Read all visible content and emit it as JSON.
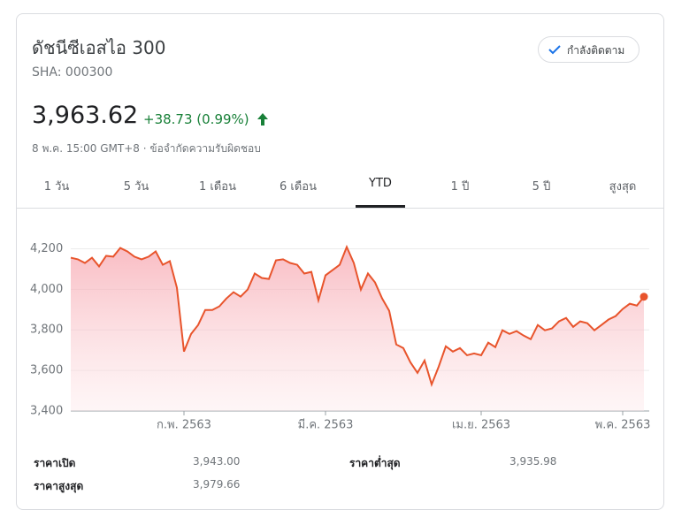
{
  "header": {
    "title": "ดัชนีซีเอสไอ 300",
    "symbol": "SHA: 000300",
    "follow_button": "กำลังติดตาม",
    "price": "3,963.62",
    "change": "+38.73 (0.99%)",
    "timestamp": "8 พ.ค. 15:00 GMT+8",
    "disclaimer": "ข้อจำกัดความรับผิดชอบ"
  },
  "tabs": [
    "1 วัน",
    "5 วัน",
    "1 เดือน",
    "6 เดือน",
    "YTD",
    "1 ปี",
    "5 ปี",
    "สูงสุด"
  ],
  "selected_tab": 4,
  "chart_data": {
    "type": "line",
    "categories": [
      null,
      null,
      null,
      null,
      null,
      null,
      null,
      null,
      null,
      null,
      null,
      null,
      null,
      null,
      null,
      null,
      "ก.พ. 2563",
      null,
      null,
      null,
      null,
      null,
      null,
      null,
      null,
      null,
      null,
      null,
      null,
      null,
      null,
      null,
      null,
      null,
      null,
      null,
      "มี.ค. 2563",
      null,
      null,
      null,
      null,
      null,
      null,
      null,
      null,
      null,
      null,
      null,
      null,
      null,
      null,
      null,
      null,
      null,
      null,
      null,
      null,
      null,
      "เม.ย. 2563",
      null,
      null,
      null,
      null,
      null,
      null,
      null,
      null,
      null,
      null,
      null,
      null,
      null,
      null,
      null,
      null,
      null,
      null,
      null,
      "พ.ค. 2563",
      null,
      null,
      null
    ],
    "series": [
      {
        "color": "#e8542c",
        "values": [
          4156,
          4148,
          4130,
          4156,
          4113,
          4165,
          4161,
          4204,
          4187,
          4161,
          4148,
          4161,
          4187,
          4121,
          4139,
          4008,
          3693,
          3780,
          3824,
          3898,
          3898,
          3916,
          3955,
          3986,
          3964,
          3999,
          4078,
          4056,
          4051,
          4143,
          4148,
          4130,
          4121,
          4078,
          4086,
          3946,
          4069,
          4095,
          4121,
          4209,
          4130,
          3999,
          4078,
          4034,
          3955,
          3894,
          3728,
          3710,
          3640,
          3588,
          3649,
          3531,
          3619,
          3719,
          3693,
          3710,
          3675,
          3684,
          3675,
          3737,
          3715,
          3798,
          3780,
          3794,
          3772,
          3754,
          3824,
          3798,
          3807,
          3842,
          3859,
          3815,
          3842,
          3833,
          3798,
          3824,
          3851,
          3868,
          3903,
          3929,
          3920,
          3963.62
        ]
      }
    ],
    "ylim": [
      3400,
      4250
    ],
    "yticks": [
      {
        "value": 3400,
        "label": "3,400"
      },
      {
        "value": 3600,
        "label": "3,600"
      },
      {
        "value": 3800,
        "label": "3,800"
      },
      {
        "value": 4000,
        "label": "4,000"
      },
      {
        "value": 4200,
        "label": "4,200"
      }
    ],
    "grid": true
  },
  "stats": [
    {
      "label": "ราคาเปิด",
      "value": "3,943.00"
    },
    {
      "label": "ราคาต่ำสุด",
      "value": "3,935.98"
    },
    {
      "label": "ราคาสูงสุด",
      "value": "3,979.66"
    }
  ]
}
